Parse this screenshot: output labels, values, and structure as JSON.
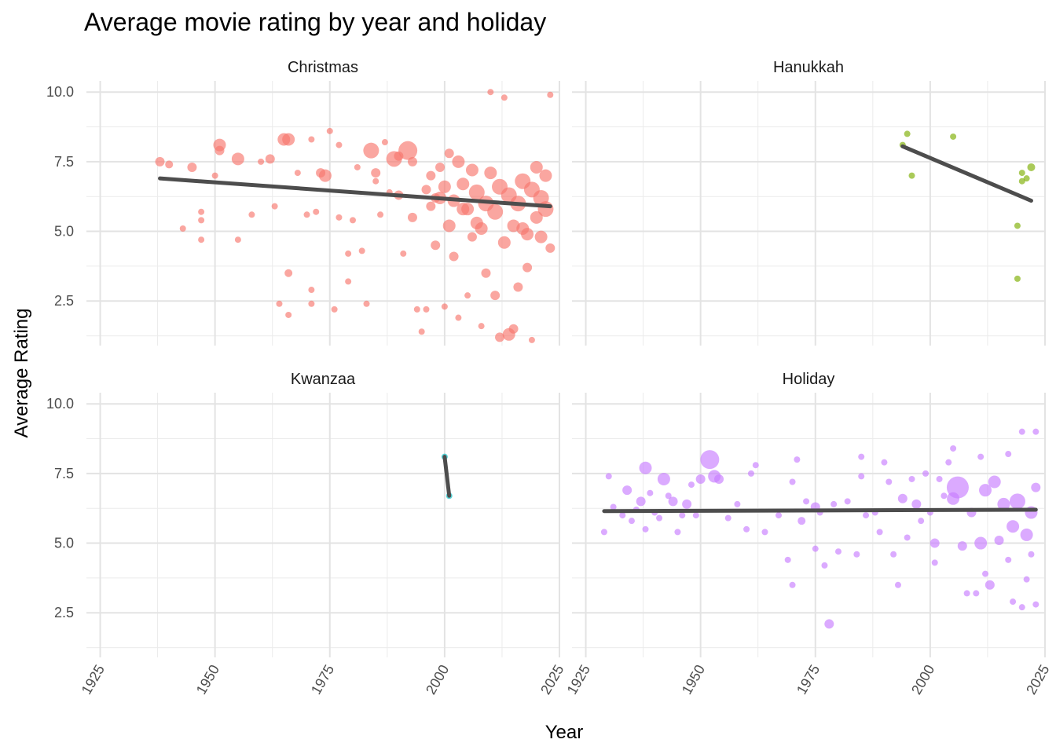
{
  "chart_data": {
    "type": "scatter",
    "title": "Average movie rating by year and holiday",
    "xlabel": "Year",
    "ylabel": "Average Rating",
    "xlim": [
      1922,
      2025
    ],
    "ylim": [
      0.9,
      10.4
    ],
    "x_ticks": [
      1925,
      1950,
      1975,
      2000,
      2025
    ],
    "y_ticks": [
      2.5,
      5.0,
      7.5,
      10.0
    ],
    "y_tick_labels": [
      "2.5",
      "5.0",
      "7.5",
      "10.0"
    ],
    "grid": true,
    "legend": "none",
    "facets": [
      {
        "name": "Christmas",
        "color": "#F8766D",
        "trend": {
          "x0": 1938,
          "y0": 6.9,
          "x1": 2023,
          "y1": 5.9
        },
        "points": [
          [
            1938,
            7.5,
            3
          ],
          [
            1940,
            7.4,
            2.5
          ],
          [
            1943,
            5.1,
            2
          ],
          [
            1945,
            7.3,
            3
          ],
          [
            1947,
            5.4,
            2
          ],
          [
            1947,
            5.7,
            2
          ],
          [
            1947,
            4.7,
            2
          ],
          [
            1950,
            7.0,
            2
          ],
          [
            1951,
            8.1,
            4
          ],
          [
            1951,
            7.9,
            3
          ],
          [
            1955,
            7.6,
            4
          ],
          [
            1955,
            4.7,
            2
          ],
          [
            1958,
            5.6,
            2
          ],
          [
            1960,
            7.5,
            2
          ],
          [
            1962,
            7.6,
            3
          ],
          [
            1963,
            5.9,
            2
          ],
          [
            1965,
            8.3,
            4
          ],
          [
            1966,
            8.3,
            4
          ],
          [
            1964,
            2.4,
            2
          ],
          [
            1966,
            2.0,
            2
          ],
          [
            1966,
            3.5,
            2.5
          ],
          [
            1968,
            7.1,
            2
          ],
          [
            1970,
            5.6,
            2
          ],
          [
            1971,
            8.3,
            2
          ],
          [
            1972,
            5.7,
            2
          ],
          [
            1971,
            2.4,
            2
          ],
          [
            1971,
            2.9,
            2
          ],
          [
            1973,
            7.1,
            3
          ],
          [
            1974,
            7.0,
            4
          ],
          [
            1975,
            8.6,
            2
          ],
          [
            1976,
            2.2,
            2
          ],
          [
            1977,
            8.1,
            2
          ],
          [
            1977,
            5.5,
            2
          ],
          [
            1979,
            4.2,
            2
          ],
          [
            1979,
            3.2,
            2
          ],
          [
            1980,
            5.4,
            2
          ],
          [
            1981,
            7.3,
            2
          ],
          [
            1982,
            4.3,
            2
          ],
          [
            1983,
            2.4,
            2
          ],
          [
            1984,
            7.9,
            5
          ],
          [
            1985,
            7.1,
            3
          ],
          [
            1985,
            6.8,
            2
          ],
          [
            1986,
            5.6,
            2
          ],
          [
            1987,
            8.2,
            2
          ],
          [
            1988,
            6.4,
            2
          ],
          [
            1989,
            7.6,
            5
          ],
          [
            1990,
            7.7,
            3
          ],
          [
            1990,
            6.3,
            3
          ],
          [
            1991,
            4.2,
            2
          ],
          [
            1992,
            7.9,
            6
          ],
          [
            1993,
            7.5,
            3
          ],
          [
            1993,
            5.5,
            3
          ],
          [
            1994,
            2.2,
            2
          ],
          [
            1995,
            1.4,
            2
          ],
          [
            1996,
            2.2,
            2
          ],
          [
            1997,
            5.9,
            3
          ],
          [
            1998,
            4.5,
            3
          ],
          [
            1999,
            6.2,
            4
          ],
          [
            2000,
            2.3,
            2
          ],
          [
            2001,
            5.2,
            4
          ],
          [
            2002,
            4.1,
            3
          ],
          [
            2003,
            1.9,
            2
          ],
          [
            2004,
            5.8,
            4
          ],
          [
            2005,
            2.7,
            2
          ],
          [
            2006,
            4.8,
            3
          ],
          [
            2007,
            5.3,
            4
          ],
          [
            2008,
            1.6,
            2
          ],
          [
            2009,
            3.5,
            3
          ],
          [
            2010,
            10.0,
            2
          ],
          [
            2011,
            2.7,
            3
          ],
          [
            2012,
            1.2,
            3
          ],
          [
            2013,
            9.8,
            2
          ],
          [
            2014,
            1.3,
            4
          ],
          [
            2015,
            1.5,
            3
          ],
          [
            2016,
            3.0,
            3
          ],
          [
            2017,
            5.1,
            4
          ],
          [
            2018,
            3.7,
            3
          ],
          [
            2019,
            1.1,
            2
          ],
          [
            2020,
            5.5,
            4
          ],
          [
            2021,
            6.2,
            5
          ],
          [
            2022,
            5.8,
            5
          ],
          [
            2023,
            9.9,
            2
          ],
          [
            2023,
            4.4,
            3
          ],
          [
            2022,
            7.0,
            4
          ],
          [
            2021,
            4.8,
            4
          ],
          [
            2020,
            7.3,
            4
          ],
          [
            2019,
            6.5,
            5
          ],
          [
            2018,
            4.9,
            4
          ],
          [
            2017,
            6.8,
            5
          ],
          [
            2016,
            6.0,
            5
          ],
          [
            2015,
            5.2,
            4
          ],
          [
            2014,
            6.3,
            5
          ],
          [
            2013,
            4.6,
            4
          ],
          [
            2012,
            6.6,
            5
          ],
          [
            2011,
            5.7,
            5
          ],
          [
            2010,
            7.1,
            4
          ],
          [
            2009,
            6.0,
            5
          ],
          [
            2008,
            5.1,
            4
          ],
          [
            2007,
            6.4,
            5
          ],
          [
            2006,
            7.2,
            4
          ],
          [
            2005,
            5.8,
            4
          ],
          [
            2004,
            6.7,
            4
          ],
          [
            2003,
            7.5,
            4
          ],
          [
            2002,
            6.1,
            4
          ],
          [
            2001,
            7.8,
            3
          ],
          [
            2000,
            6.6,
            4
          ],
          [
            1999,
            7.3,
            3
          ],
          [
            1998,
            6.2,
            3
          ],
          [
            1997,
            7.0,
            3
          ],
          [
            1996,
            6.5,
            3
          ]
        ]
      },
      {
        "name": "Hanukkah",
        "color": "#7CAE00",
        "trend": {
          "x0": 1994,
          "y0": 8.05,
          "x1": 2022,
          "y1": 6.1
        },
        "points": [
          [
            1994,
            8.1,
            2
          ],
          [
            1995,
            8.5,
            2
          ],
          [
            1996,
            7.0,
            2
          ],
          [
            2005,
            8.4,
            2
          ],
          [
            2019,
            5.2,
            2
          ],
          [
            2019,
            3.3,
            2
          ],
          [
            2020,
            6.8,
            2
          ],
          [
            2020,
            7.1,
            2
          ],
          [
            2021,
            6.9,
            2
          ],
          [
            2022,
            7.3,
            2.5
          ]
        ]
      },
      {
        "name": "Kwanzaa",
        "color": "#00BFC4",
        "trend": {
          "x0": 2000,
          "y0": 8.1,
          "x1": 2001,
          "y1": 6.7
        },
        "points": [
          [
            2000,
            8.1,
            2
          ],
          [
            2001,
            6.7,
            2
          ]
        ]
      },
      {
        "name": "Holiday",
        "color": "#C77CFF",
        "trend": {
          "x0": 1929,
          "y0": 6.15,
          "x1": 2023,
          "y1": 6.2
        },
        "points": [
          [
            1929,
            5.4,
            2
          ],
          [
            1930,
            7.4,
            2
          ],
          [
            1931,
            6.3,
            2
          ],
          [
            1933,
            6.0,
            2
          ],
          [
            1934,
            6.9,
            3
          ],
          [
            1935,
            5.8,
            2
          ],
          [
            1936,
            6.2,
            2
          ],
          [
            1937,
            6.5,
            3
          ],
          [
            1938,
            7.7,
            4
          ],
          [
            1938,
            5.5,
            2
          ],
          [
            1939,
            6.8,
            2
          ],
          [
            1940,
            6.1,
            2
          ],
          [
            1941,
            5.9,
            2
          ],
          [
            1942,
            7.3,
            4
          ],
          [
            1943,
            6.7,
            2
          ],
          [
            1944,
            6.5,
            3
          ],
          [
            1945,
            5.4,
            2
          ],
          [
            1946,
            6.0,
            2
          ],
          [
            1947,
            6.4,
            3
          ],
          [
            1948,
            7.1,
            2
          ],
          [
            1949,
            6.0,
            2
          ],
          [
            1950,
            7.3,
            3
          ],
          [
            1952,
            8.0,
            6
          ],
          [
            1953,
            7.4,
            4
          ],
          [
            1954,
            7.3,
            3
          ],
          [
            1956,
            5.9,
            2
          ],
          [
            1958,
            6.4,
            2
          ],
          [
            1960,
            5.5,
            2
          ],
          [
            1961,
            7.5,
            2
          ],
          [
            1962,
            7.8,
            2
          ],
          [
            1964,
            5.4,
            2
          ],
          [
            1967,
            6.0,
            2
          ],
          [
            1969,
            4.4,
            2
          ],
          [
            1970,
            7.2,
            2
          ],
          [
            1970,
            3.5,
            2
          ],
          [
            1971,
            8.0,
            2
          ],
          [
            1972,
            5.8,
            2.5
          ],
          [
            1973,
            6.5,
            2
          ],
          [
            1975,
            6.3,
            3
          ],
          [
            1975,
            4.8,
            2
          ],
          [
            1976,
            6.1,
            2
          ],
          [
            1977,
            4.2,
            2
          ],
          [
            1978,
            2.1,
            3
          ],
          [
            1979,
            6.4,
            2
          ],
          [
            1980,
            4.7,
            2
          ],
          [
            1982,
            6.5,
            2
          ],
          [
            1984,
            4.6,
            2
          ],
          [
            1985,
            8.1,
            2
          ],
          [
            1985,
            7.4,
            2
          ],
          [
            1986,
            6.0,
            2
          ],
          [
            1988,
            6.1,
            2
          ],
          [
            1989,
            5.4,
            2
          ],
          [
            1990,
            7.9,
            2
          ],
          [
            1991,
            7.2,
            2
          ],
          [
            1992,
            4.6,
            2
          ],
          [
            1993,
            3.5,
            2
          ],
          [
            1994,
            6.6,
            3
          ],
          [
            1995,
            5.2,
            2
          ],
          [
            1996,
            7.3,
            2
          ],
          [
            1997,
            6.4,
            3
          ],
          [
            1998,
            5.8,
            2
          ],
          [
            1999,
            7.5,
            2
          ],
          [
            2000,
            6.1,
            2
          ],
          [
            2001,
            5.0,
            3
          ],
          [
            2001,
            4.3,
            2
          ],
          [
            2002,
            7.3,
            2
          ],
          [
            2003,
            6.7,
            2
          ],
          [
            2004,
            7.9,
            2
          ],
          [
            2005,
            8.4,
            2
          ],
          [
            2005,
            6.6,
            4
          ],
          [
            2006,
            7.0,
            7
          ],
          [
            2007,
            4.9,
            3
          ],
          [
            2008,
            3.2,
            2
          ],
          [
            2009,
            6.1,
            3
          ],
          [
            2010,
            3.2,
            2
          ],
          [
            2011,
            8.1,
            2
          ],
          [
            2011,
            5.0,
            4
          ],
          [
            2012,
            3.9,
            2
          ],
          [
            2012,
            6.9,
            4
          ],
          [
            2013,
            3.5,
            3
          ],
          [
            2014,
            7.2,
            4
          ],
          [
            2015,
            5.1,
            3
          ],
          [
            2016,
            6.4,
            4
          ],
          [
            2017,
            8.2,
            2
          ],
          [
            2017,
            4.4,
            2
          ],
          [
            2018,
            5.6,
            4
          ],
          [
            2018,
            2.9,
            2
          ],
          [
            2019,
            6.5,
            5
          ],
          [
            2020,
            2.7,
            2
          ],
          [
            2020,
            9.0,
            2
          ],
          [
            2021,
            5.3,
            4
          ],
          [
            2021,
            3.7,
            2
          ],
          [
            2022,
            6.1,
            4
          ],
          [
            2022,
            4.6,
            2
          ],
          [
            2023,
            9.0,
            2
          ],
          [
            2023,
            2.8,
            2
          ],
          [
            2023,
            7.0,
            3
          ]
        ]
      }
    ]
  }
}
